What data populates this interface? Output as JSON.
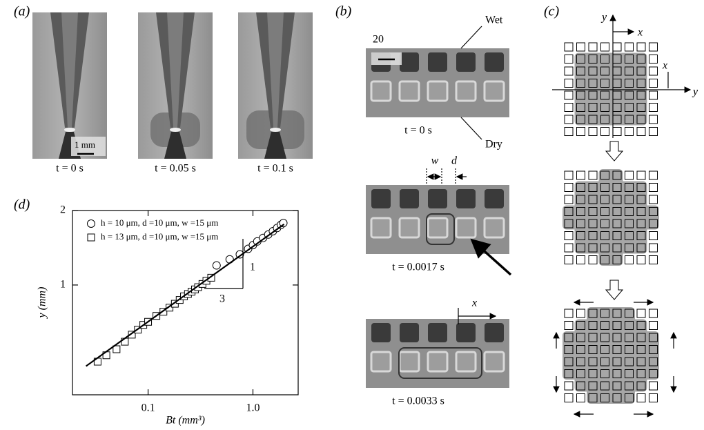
{
  "panel_a": {
    "label": "(a)",
    "scale_bar": "1 mm",
    "captions": [
      "t = 0 s",
      "t = 0.05 s",
      "t = 0.1 s"
    ]
  },
  "panel_b": {
    "label": "(b)",
    "scale_bar": "20",
    "wet": "Wet",
    "dry": "Dry",
    "w": "w",
    "d": "d",
    "x": "x",
    "captions": [
      "t = 0 s",
      "t = 0.0017 s",
      "t = 0.0033 s"
    ]
  },
  "panel_c": {
    "label": "(c)",
    "axes": [
      "y",
      "x",
      "x",
      "y"
    ]
  },
  "chart_data": {
    "type": "scatter",
    "label": "(d)",
    "xlabel": "Bt (mm³)",
    "ylabel": "y (mm)",
    "log_x": true,
    "log_y": true,
    "color": "#000000",
    "xlim": [
      0.019,
      2.7
    ],
    "ylim": [
      0.36,
      2
    ],
    "xticks": [
      0.1,
      {
        "value": 1,
        "label": "1.0"
      }
    ],
    "yticks": [
      1,
      2
    ],
    "series": [
      {
        "name": "h = 10 μm, d =10 μm, w =15 μm",
        "marker": "circle",
        "x": [
          0.45,
          0.6,
          0.75,
          0.9,
          1.0,
          1.1,
          1.25,
          1.4,
          1.55,
          1.7,
          1.85,
          1.95
        ],
        "values": [
          1.2,
          1.27,
          1.33,
          1.4,
          1.45,
          1.5,
          1.55,
          1.6,
          1.65,
          1.7,
          1.75,
          1.78
        ]
      },
      {
        "name": "h = 13 μm, d =10 μm, w =15 μm",
        "marker": "square",
        "x": [
          0.033,
          0.04,
          0.05,
          0.06,
          0.07,
          0.08,
          0.09,
          0.1,
          0.12,
          0.14,
          0.16,
          0.18,
          0.2,
          0.22,
          0.24,
          0.26,
          0.28,
          0.3,
          0.33,
          0.36,
          0.4
        ],
        "values": [
          0.49,
          0.52,
          0.55,
          0.59,
          0.63,
          0.66,
          0.69,
          0.71,
          0.75,
          0.78,
          0.81,
          0.84,
          0.87,
          0.9,
          0.92,
          0.94,
          0.96,
          0.98,
          1.01,
          1.04,
          1.07
        ]
      }
    ],
    "fit": {
      "x": [
        0.0256,
        1.98
      ],
      "values": [
        0.47,
        1.76
      ]
    },
    "slope_labels": [
      "1",
      "3"
    ]
  }
}
